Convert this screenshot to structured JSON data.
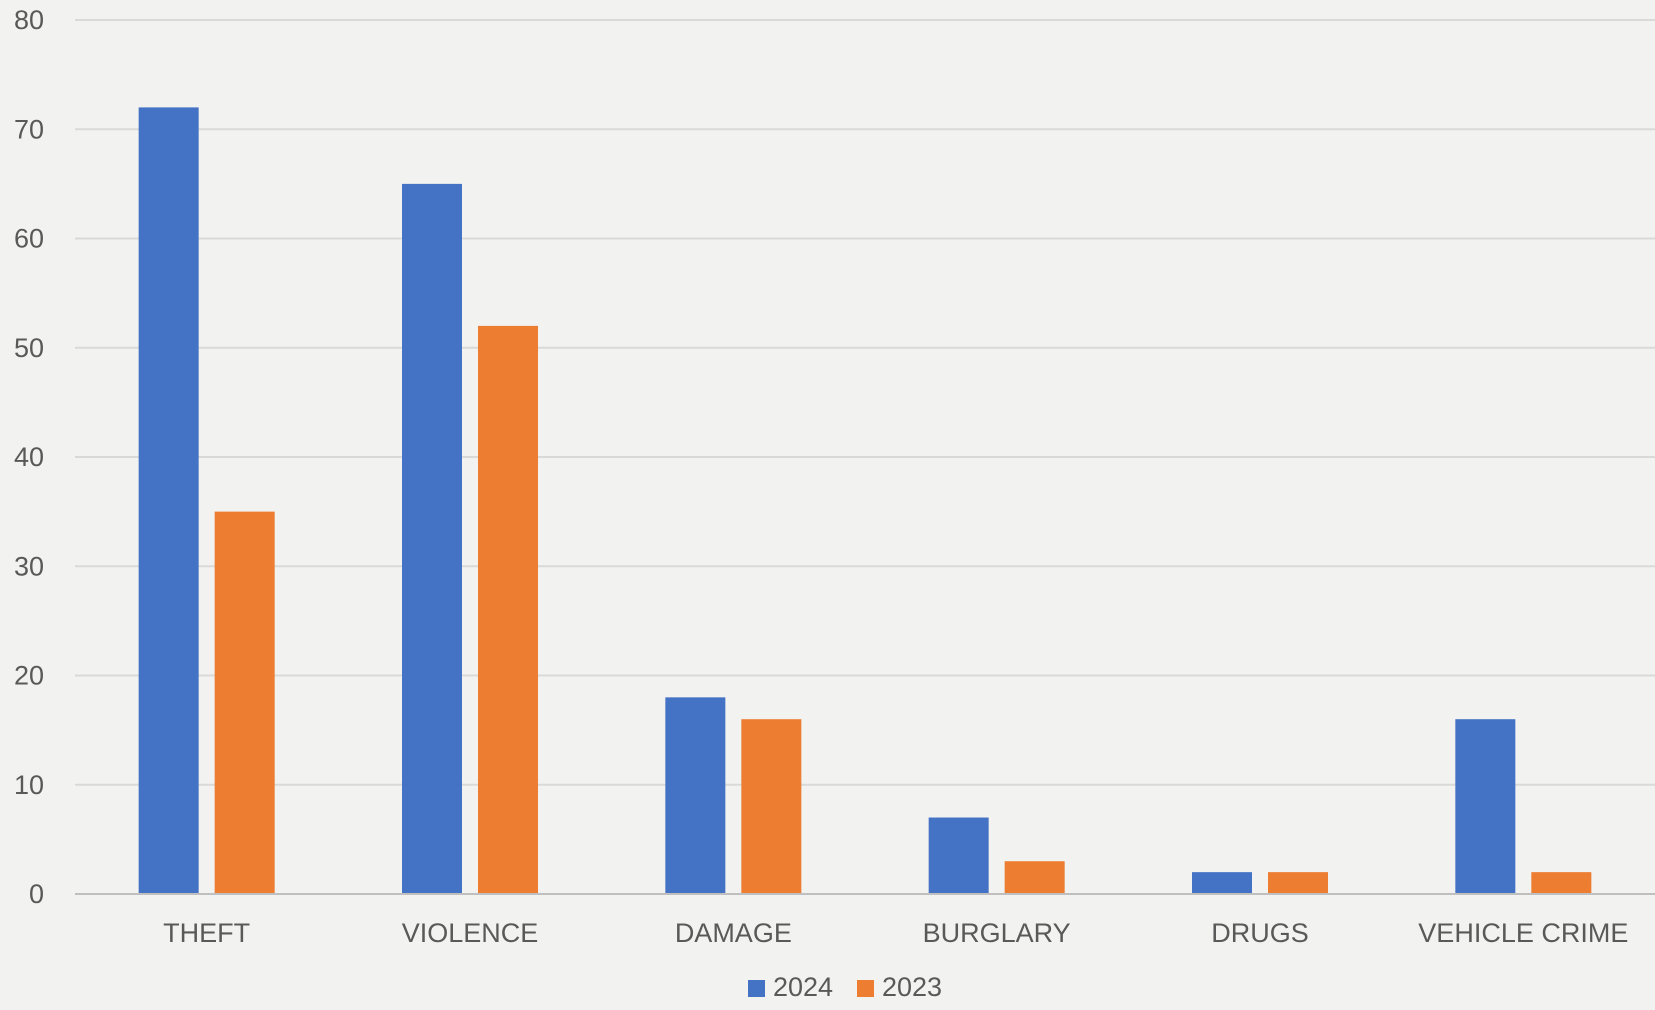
{
  "chart_data": {
    "type": "bar",
    "categories": [
      "THEFT",
      "VIOLENCE",
      "DAMAGE",
      "BURGLARY",
      "DRUGS",
      "VEHICLE CRIME"
    ],
    "series": [
      {
        "name": "2024",
        "values": [
          72,
          65,
          18,
          7,
          2,
          16
        ],
        "color": "#4472c4"
      },
      {
        "name": "2023",
        "values": [
          35,
          52,
          16,
          3,
          2,
          2
        ],
        "color": "#ed7d31"
      }
    ],
    "yticks": [
      0,
      10,
      20,
      30,
      40,
      50,
      60,
      70,
      80
    ],
    "ylim": [
      0,
      80
    ],
    "title": "",
    "xlabel": "",
    "ylabel": "",
    "grid": true,
    "legend": "bottom-center"
  },
  "colors": {
    "background": "#f2f2f0",
    "gridline": "#d9d9d9",
    "axis": "#bfbfbf",
    "text": "#595959"
  }
}
